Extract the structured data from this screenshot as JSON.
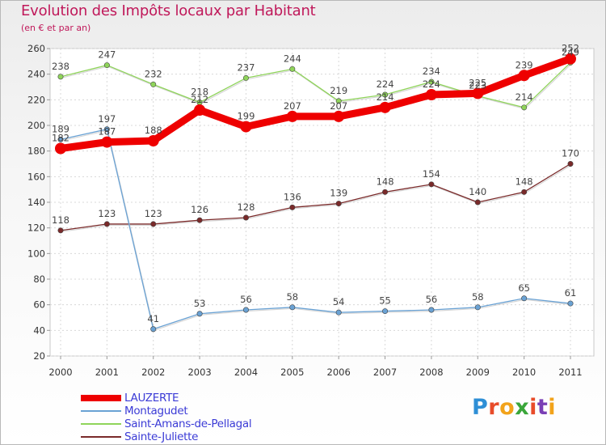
{
  "title": "Evolution des Impôts locaux par Habitant",
  "subtitle": "(en € et par an)",
  "logo": {
    "letters": [
      "P",
      "r",
      "o",
      "x",
      "i",
      "t",
      "i"
    ],
    "colors": [
      "#2e8fd6",
      "#e84c2a",
      "#f2a31b",
      "#3aa63a",
      "#e84c2a",
      "#7a3fb5",
      "#f2a31b"
    ]
  },
  "chart_data": {
    "type": "line",
    "title": "Evolution des Impôts locaux par Habitant",
    "ylabel": "(en € et par an)",
    "xlabel": "",
    "categories": [
      "2000",
      "2001",
      "2002",
      "2003",
      "2004",
      "2005",
      "2006",
      "2007",
      "2008",
      "2009",
      "2010",
      "2011"
    ],
    "ylim": [
      20,
      260
    ],
    "yticks": [
      "20",
      "40",
      "60",
      "80",
      "100",
      "120",
      "140",
      "160",
      "180",
      "200",
      "220",
      "240",
      "260"
    ],
    "grid": true,
    "legend_position": "bottom-left",
    "series": [
      {
        "name": "LAUZERTE",
        "color": "#ee0000",
        "values": [
          182,
          187,
          188,
          212,
          199,
          207,
          207,
          214,
          224,
          225,
          239,
          252
        ],
        "labels": [
          "182",
          "187",
          "188",
          "212",
          "199",
          "207",
          "207",
          "214",
          "224",
          "225",
          "239",
          "252"
        ]
      },
      {
        "name": "Montagudet",
        "color": "#6aa2d4",
        "values": [
          189,
          197,
          41,
          53,
          56,
          58,
          54,
          55,
          56,
          58,
          65,
          61
        ],
        "labels": [
          "189",
          "197",
          "41",
          "53",
          "56",
          "58",
          "54",
          "55",
          "56",
          "58",
          "65",
          "61"
        ]
      },
      {
        "name": "Saint-Amans-de-Pellagal",
        "color": "#8fd45a",
        "values": [
          238,
          247,
          232,
          218,
          237,
          244,
          219,
          224,
          234,
          223,
          214,
          249
        ],
        "labels": [
          "238",
          "247",
          "232",
          "218",
          "237",
          "244",
          "219",
          "224",
          "234",
          "223",
          "214",
          "249"
        ]
      },
      {
        "name": "Sainte-Juliette",
        "color": "#7a2a2a",
        "values": [
          118,
          123,
          123,
          126,
          128,
          136,
          139,
          148,
          154,
          140,
          148,
          170
        ],
        "labels": [
          "118",
          "123",
          "123",
          "126",
          "128",
          "136",
          "139",
          "148",
          "154",
          "140",
          "148",
          "170"
        ]
      }
    ]
  }
}
